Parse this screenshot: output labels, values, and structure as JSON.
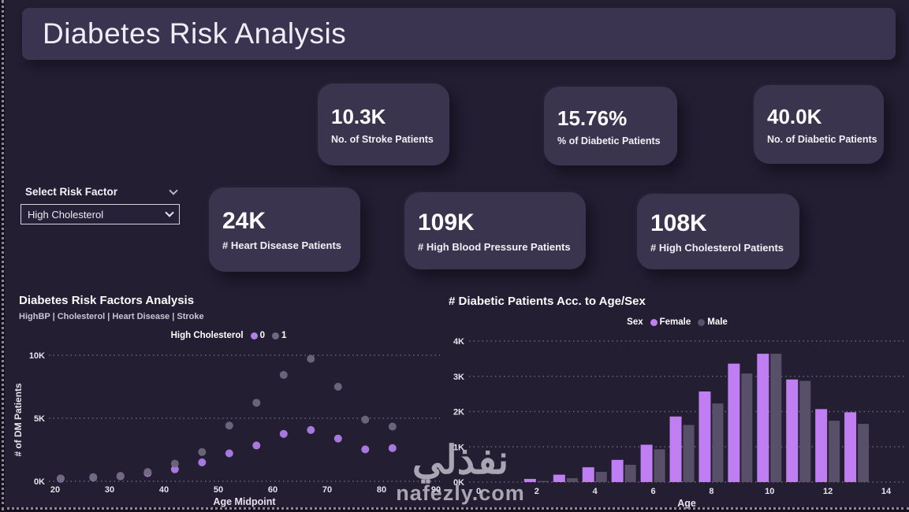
{
  "title": "Diabetes Risk Analysis",
  "kpis_row1": [
    {
      "value": "10.3K",
      "label": "No. of Stroke Patients"
    },
    {
      "value": "15.76%",
      "label": "% of Diabetic Patients"
    },
    {
      "value": "40.0K",
      "label": "No. of Diabetic Patients"
    }
  ],
  "kpis_row2": [
    {
      "value": "24K",
      "label": "# Heart Disease Patients"
    },
    {
      "value": "109K",
      "label": "# High Blood Pressure Patients"
    },
    {
      "value": "108K",
      "label": "# High Cholesterol Patients"
    }
  ],
  "slicer": {
    "label": "Select Risk Factor",
    "selected": "High Cholesterol"
  },
  "watermark": {
    "arabic": "نفذلي",
    "domain": "nafezly.com"
  },
  "colors": {
    "page_bg": "#231e32",
    "panel_bg": "#3a344e",
    "purple_scatter": "#af7ee8",
    "gray_scatter": "#6f6880",
    "purple_bar": "#bf7ef2",
    "gray_bar": "#585069",
    "gridline": "#6b6478",
    "tick_text": "#e6e3ed"
  },
  "chart_data": [
    {
      "type": "scatter",
      "title": "Diabetes Risk Factors Analysis",
      "subtitle": "HighBP | Cholesterol | Heart Disease | Stroke",
      "legend_title": "High Cholesterol",
      "legend_position": "top-center",
      "xlabel": "Age Midpoint",
      "ylabel": "# of DM Patients",
      "x_ticks": [
        20,
        30,
        40,
        50,
        60,
        70,
        80,
        90
      ],
      "y_ticks": [
        {
          "v": 0,
          "label": "0K"
        },
        {
          "v": 5000,
          "label": "5K"
        },
        {
          "v": 10000,
          "label": "10K"
        }
      ],
      "ylim": [
        0,
        10500
      ],
      "grid": "horizontal-dotted",
      "x": [
        21,
        27,
        32,
        37,
        42,
        47,
        52,
        57,
        62,
        67,
        72,
        77,
        82
      ],
      "series": [
        {
          "name": "0",
          "color": "#af7ee8",
          "values": [
            200,
            300,
            400,
            650,
            950,
            1500,
            2220,
            2840,
            3760,
            4070,
            3390,
            2530,
            2630
          ]
        },
        {
          "name": "1",
          "color": "#6f6880",
          "values": [
            230,
            330,
            430,
            740,
            1400,
            2320,
            4420,
            6230,
            8440,
            9720,
            7500,
            4890,
            4340
          ]
        }
      ]
    },
    {
      "type": "bar",
      "title": "# Diabetic Patients Acc. to Age/Sex",
      "legend_title": "Sex",
      "legend_position": "top-center",
      "xlabel": "Age",
      "ylabel": "",
      "x_ticks": [
        0,
        2,
        4,
        6,
        8,
        10,
        12,
        14
      ],
      "y_ticks": [
        {
          "v": 0,
          "label": "0K"
        },
        {
          "v": 1000,
          "label": "1K"
        },
        {
          "v": 2000,
          "label": "2K"
        },
        {
          "v": 3000,
          "label": "3K"
        },
        {
          "v": 4000,
          "label": "4K"
        }
      ],
      "ylim": [
        0,
        4200
      ],
      "grid": "horizontal-dotted",
      "categories": [
        2,
        3,
        4,
        5,
        6,
        7,
        8,
        9,
        10,
        11,
        12,
        13
      ],
      "series": [
        {
          "name": "Female",
          "color": "#bf7ef2",
          "values": [
            90,
            210,
            420,
            630,
            1060,
            1860,
            2570,
            3360,
            3640,
            2910,
            2070,
            1980
          ]
        },
        {
          "name": "Male",
          "color": "#585069",
          "values": [
            30,
            110,
            290,
            490,
            930,
            1620,
            2230,
            3080,
            3640,
            2870,
            1740,
            1650
          ]
        }
      ]
    }
  ]
}
